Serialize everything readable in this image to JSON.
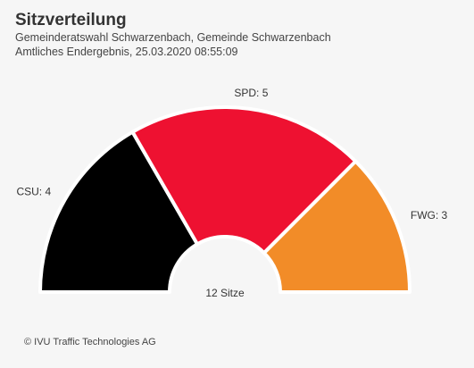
{
  "header": {
    "title": "Sitzverteilung",
    "subtitle1": "Gemeinderatswahl Schwarzenbach, Gemeinde Schwarzenbach",
    "subtitle2": "Amtliches Endergebnis, 25.03.2020 08:55:09"
  },
  "chart_data": {
    "type": "pie",
    "variant": "semicircle-parliament",
    "categories": [
      "CSU",
      "SPD",
      "FWG"
    ],
    "values": [
      4,
      5,
      3
    ],
    "labels": [
      "CSU: 4",
      "SPD: 5",
      "FWG: 3"
    ],
    "colors": [
      "#000000",
      "#ee1131",
      "#f28c28"
    ],
    "center_label": "12 Sitze"
  },
  "footer": {
    "copyright": "© IVU Traffic Technologies AG"
  }
}
